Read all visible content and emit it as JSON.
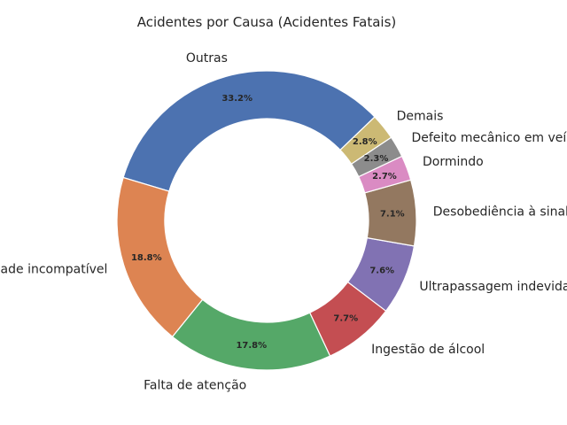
{
  "chart_data": {
    "type": "pie",
    "donut": true,
    "title": "Acidentes por Causa (Acidentes Fatais)",
    "slices": [
      {
        "label": "Outras",
        "value": 33.2,
        "pct_label": "33.2%",
        "color": "#4c72b0"
      },
      {
        "label": "Velocidade incompatível",
        "value": 18.8,
        "pct_label": "18.8%",
        "color": "#dd8452"
      },
      {
        "label": "Falta de atenção",
        "value": 17.8,
        "pct_label": "17.8%",
        "color": "#55a868"
      },
      {
        "label": "Ingestão de álcool",
        "value": 7.7,
        "pct_label": "7.7%",
        "color": "#c44e52"
      },
      {
        "label": "Ultrapassagem indevida",
        "value": 7.6,
        "pct_label": "7.6%",
        "color": "#8172b3"
      },
      {
        "label": "Desobediência à sinalização",
        "value": 7.1,
        "pct_label": "7.1%",
        "color": "#937860"
      },
      {
        "label": "Dormindo",
        "value": 2.7,
        "pct_label": "2.7%",
        "color": "#da8bc3"
      },
      {
        "label": "Defeito mecânico em veículo",
        "value": 2.3,
        "pct_label": "2.3%",
        "color": "#8c8c8c"
      },
      {
        "label": "Demais",
        "value": 2.8,
        "pct_label": "2.8%",
        "color": "#ccb974"
      }
    ]
  }
}
